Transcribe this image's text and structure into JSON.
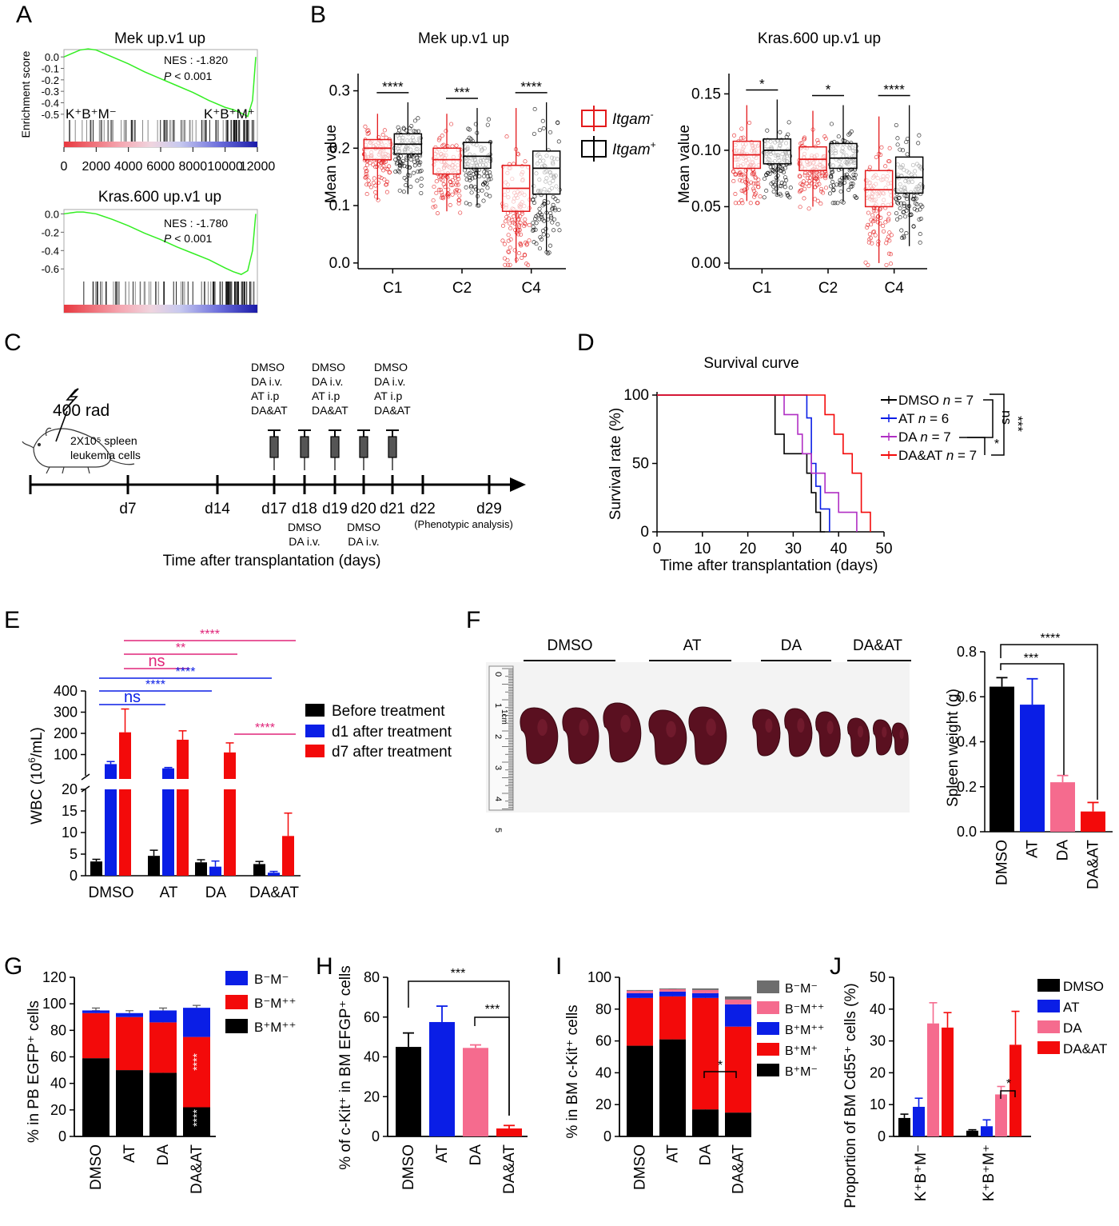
{
  "panels": {
    "A": {
      "letter": "A",
      "top": {
        "title": "Mek up.v1 up",
        "ylabel": "Enrichment score",
        "yticks": [
          "0.0",
          "-0.1",
          "-0.2",
          "-0.3",
          "-0.4",
          "-0.5"
        ],
        "nes": "NES : -1.820",
        "p_italic": "P",
        "p_rest": " < 0.001",
        "left_group": "K⁺B⁺M⁻",
        "right_group": "K⁺B⁺M⁺",
        "xticks": [
          "0",
          "2000",
          "4000",
          "6000",
          "8000",
          "10000",
          "12000"
        ]
      },
      "bottom": {
        "title": "Kras.600 up.v1 up",
        "yticks": [
          "0.0",
          "-0.2",
          "-0.4",
          "-0.6"
        ],
        "nes": "NES : -1.780",
        "p_italic": "P",
        "p_rest": " < 0.001"
      }
    },
    "B": {
      "letter": "B",
      "ylabel": "Mean value",
      "legend": [
        {
          "gene": "Itgam",
          "sup": "-",
          "color": "#e31a1c"
        },
        {
          "gene": "Itgam",
          "sup": "+",
          "color": "#000000"
        }
      ],
      "left": {
        "title": "Mek up.v1 up",
        "yticks": [
          "0.0",
          "0.1",
          "0.2",
          "0.3"
        ],
        "stars": [
          "****",
          "***",
          "****"
        ]
      },
      "right": {
        "title": "Kras.600 up.v1 up",
        "yticks": [
          "0.00",
          "0.05",
          "0.10",
          "0.15"
        ],
        "stars": [
          "*",
          "*",
          "****"
        ]
      }
    },
    "C": {
      "letter": "C",
      "dose": "400 rad",
      "cells_line1": "2X10⁵ spleen",
      "cells_line2": "leukemia cells",
      "treat_lines": [
        "DMSO",
        "DA i.v.",
        "AT i.p",
        "DA&AT"
      ],
      "below_lines": [
        "DMSO",
        "DA i.v."
      ],
      "days": [
        "d7",
        "d14",
        "d17",
        "d18",
        "d19",
        "d20",
        "d21",
        "d22",
        "d29"
      ],
      "pheno": "(Phenotypic analysis)",
      "xlabel": "Time after transplantation (days)"
    },
    "D": {
      "letter": "D",
      "title": "Survival curve",
      "ylabel": "Survival rate (%)",
      "xlabel": "Time after transplantation (days)",
      "sig": [
        "ns",
        "***",
        "*"
      ]
    },
    "E": {
      "letter": "E",
      "ylabel_pre": "WBC (10",
      "ylabel_sup": "6",
      "ylabel_post": "/mL)",
      "legend": [
        "Before treatment",
        "d1 after treatment",
        "d7 after treatment"
      ],
      "sig": [
        "****",
        "**",
        "ns",
        "****",
        "****",
        "ns",
        "****"
      ]
    },
    "F": {
      "letter": "F",
      "photo_groups": [
        "DMSO",
        "AT",
        "DA",
        "DA&AT"
      ],
      "ruler_label": "1cm",
      "ylabel": "Spleen weight (g)",
      "sig": [
        "****",
        "***"
      ]
    },
    "G": {
      "letter": "G",
      "ylabel": "% in PB EGFP⁺ cells",
      "legend": [
        "B⁻M⁻",
        "B⁻M⁺⁺",
        "B⁺M⁺⁺"
      ],
      "star": "****"
    },
    "H": {
      "letter": "H",
      "ylabel": "% of c-Kit⁺ in BM EFGP⁺ cells",
      "sig": [
        "***",
        "***"
      ]
    },
    "I": {
      "letter": "I",
      "ylabel": "% in BM c-Kit⁺ cells",
      "legend": [
        "B⁻M⁻",
        "B⁻M⁺⁺",
        "B⁺M⁺⁺",
        "B⁺M⁺",
        "B⁺M⁻"
      ],
      "sig": "*"
    },
    "J": {
      "letter": "J",
      "ylabel": "Proportion of BM Cd55⁺ cells (%)",
      "legend": [
        "DMSO",
        "AT",
        "DA",
        "DA&AT"
      ],
      "groups": [
        "K⁺B⁺M⁻",
        "K⁺B⁺M⁺"
      ],
      "sig": "*"
    }
  },
  "colors": {
    "black": "#000000",
    "blue": "#0a1ee6",
    "red": "#f30a0a",
    "pink": "#f56b8e",
    "gray": "#6d6d6d",
    "magenta": "#e0267a",
    "purple": "#b02fc4",
    "gsea_green": "#33ee22"
  },
  "chart_data": [
    {
      "id": "A-top",
      "type": "line",
      "title": "Mek up.v1 up",
      "ylabel": "Enrichment score",
      "x": [
        0,
        500,
        1000,
        1500,
        2000,
        3000,
        4000,
        5000,
        6000,
        7000,
        8000,
        9000,
        10000,
        10500,
        11000,
        11400,
        11700,
        11900
      ],
      "y": [
        0.0,
        0.03,
        0.06,
        0.07,
        0.06,
        0.0,
        -0.06,
        -0.13,
        -0.19,
        -0.25,
        -0.31,
        -0.38,
        -0.44,
        -0.46,
        -0.49,
        -0.52,
        -0.38,
        0.0
      ],
      "xlim": [
        0,
        12000
      ],
      "ylim": [
        -0.55,
        0.05
      ]
    },
    {
      "id": "A-bottom",
      "type": "line",
      "title": "Kras.600 up.v1 up",
      "x": [
        0,
        400,
        800,
        1200,
        2000,
        3000,
        4000,
        5000,
        6000,
        7000,
        8000,
        9000,
        10000,
        10500,
        11000,
        11400,
        11700,
        11900
      ],
      "y": [
        0.0,
        0.01,
        0.02,
        0.02,
        0.0,
        -0.06,
        -0.13,
        -0.21,
        -0.28,
        -0.36,
        -0.43,
        -0.5,
        -0.59,
        -0.63,
        -0.66,
        -0.62,
        -0.4,
        0.0
      ],
      "xlim": [
        0,
        12000
      ],
      "ylim": [
        -0.72,
        0.03
      ]
    },
    {
      "id": "B-left",
      "type": "box",
      "title": "Mek up.v1 up",
      "ylabel": "Mean value",
      "categories": [
        "C1",
        "C2",
        "C4"
      ],
      "ylim": [
        -0.01,
        0.33
      ],
      "series": [
        {
          "name": "Itgam-",
          "boxes": [
            [
              0.11,
              0.18,
              0.2,
              0.215,
              0.26
            ],
            [
              0.09,
              0.155,
              0.18,
              0.2,
              0.26
            ],
            [
              0.0,
              0.09,
              0.13,
              0.17,
              0.27
            ]
          ]
        },
        {
          "name": "Itgam+",
          "boxes": [
            [
              0.12,
              0.19,
              0.207,
              0.225,
              0.28
            ],
            [
              0.1,
              0.165,
              0.186,
              0.21,
              0.27
            ],
            [
              0.02,
              0.12,
              0.165,
              0.195,
              0.28
            ]
          ]
        }
      ],
      "significance": [
        "****",
        "***",
        "****"
      ]
    },
    {
      "id": "B-right",
      "type": "box",
      "title": "Kras.600 up.v1 up",
      "ylabel": "Mean value",
      "categories": [
        "C1",
        "C2",
        "C4"
      ],
      "ylim": [
        -0.005,
        0.168
      ],
      "series": [
        {
          "name": "Itgam-",
          "boxes": [
            [
              0.055,
              0.084,
              0.096,
              0.108,
              0.14
            ],
            [
              0.05,
              0.082,
              0.092,
              0.103,
              0.135
            ],
            [
              0.0,
              0.05,
              0.065,
              0.082,
              0.13
            ]
          ]
        },
        {
          "name": "Itgam+",
          "boxes": [
            [
              0.06,
              0.088,
              0.1,
              0.11,
              0.145
            ],
            [
              0.055,
              0.084,
              0.093,
              0.106,
              0.14
            ],
            [
              0.015,
              0.062,
              0.076,
              0.094,
              0.14
            ]
          ]
        }
      ],
      "significance": [
        "*",
        "*",
        "****"
      ]
    },
    {
      "id": "D",
      "type": "line",
      "title": "Survival curve",
      "xlabel": "Time after transplantation (days)",
      "ylabel": "Survival rate (%)",
      "xlim": [
        0,
        50
      ],
      "ylim": [
        0,
        100
      ],
      "xticks": [
        0,
        10,
        20,
        30,
        40,
        50
      ],
      "yticks": [
        0,
        50,
        100
      ],
      "series": [
        {
          "name": "DMSO n = 7",
          "color": "#000000",
          "x": [
            0,
            26,
            26,
            28,
            28,
            33,
            33,
            34,
            34,
            35,
            35,
            36,
            36,
            37,
            37
          ],
          "y": [
            100,
            100,
            71.4,
            71.4,
            57.1,
            57.1,
            42.9,
            42.9,
            28.6,
            28.6,
            14.3,
            14.3,
            0,
            0,
            0
          ]
        },
        {
          "name": "AT n = 6",
          "color": "#0a1ee6",
          "x": [
            0,
            33,
            33,
            34,
            34,
            35,
            35,
            36,
            36,
            38,
            38
          ],
          "y": [
            100,
            100,
            83.3,
            83.3,
            50,
            50,
            33.3,
            33.3,
            16.7,
            16.7,
            0
          ]
        },
        {
          "name": "DA n = 7",
          "color": "#b02fc4",
          "x": [
            0,
            28,
            28,
            31,
            31,
            32,
            32,
            34,
            34,
            37,
            37,
            40,
            40,
            44,
            44
          ],
          "y": [
            100,
            100,
            85.7,
            85.7,
            71.4,
            71.4,
            57.1,
            57.1,
            42.9,
            42.9,
            28.6,
            28.6,
            14.3,
            14.3,
            0
          ]
        },
        {
          "name": "DA&AT n = 7",
          "color": "#f30a0a",
          "x": [
            0,
            37,
            37,
            39,
            39,
            41,
            41,
            43,
            43,
            45,
            45,
            47,
            47
          ],
          "y": [
            100,
            100,
            85.7,
            85.7,
            71.4,
            71.4,
            57.1,
            57.1,
            42.9,
            42.9,
            14.3,
            14.3,
            0
          ]
        }
      ],
      "significance": [
        "ns",
        "***",
        "*"
      ]
    },
    {
      "id": "E",
      "type": "bar",
      "ylabel": "WBC (10^6/mL)",
      "categories": [
        "DMSO",
        "AT",
        "DA",
        "DA&AT"
      ],
      "series": [
        {
          "name": "Before treatment",
          "values": [
            3.3,
            4.6,
            3.1,
            2.7
          ],
          "errors": [
            0.5,
            1.3,
            0.6,
            0.6
          ]
        },
        {
          "name": "d1 after treatment",
          "values": [
            55,
            35,
            2.1,
            0.7
          ],
          "errors": [
            12,
            4,
            1.3,
            0.3
          ]
        },
        {
          "name": "d7 after treatment",
          "values": [
            205,
            170,
            110,
            9.2
          ],
          "errors": [
            110,
            42,
            45,
            5.3
          ]
        }
      ],
      "axis_break": {
        "low": [
          0,
          20
        ],
        "high": [
          0,
          400
        ]
      },
      "yticks_low": [
        0,
        5,
        10,
        15,
        20
      ],
      "yticks_high": [
        100,
        200,
        300,
        400
      ],
      "significance": [
        "****",
        "**",
        "ns",
        "****",
        "****",
        "ns",
        "****"
      ]
    },
    {
      "id": "F",
      "type": "bar",
      "ylabel": "Spleen weight (g)",
      "categories": [
        "DMSO",
        "AT",
        "DA",
        "DA&AT"
      ],
      "values": [
        0.645,
        0.565,
        0.22,
        0.09
      ],
      "errors": [
        0.04,
        0.115,
        0.03,
        0.04
      ],
      "ylim": [
        0,
        0.8
      ],
      "yticks": [
        0.0,
        0.2,
        0.4,
        0.6,
        0.8
      ],
      "significance": [
        "****",
        "***"
      ]
    },
    {
      "id": "G",
      "type": "bar",
      "ylabel": "% in PB EGFP+ cells",
      "categories": [
        "DMSO",
        "AT",
        "DA",
        "DA&AT"
      ],
      "series": [
        {
          "name": "B+M++",
          "values": [
            59,
            50,
            48,
            22
          ]
        },
        {
          "name": "B-M++",
          "values": [
            34,
            40,
            38,
            53
          ]
        },
        {
          "name": "B-M-",
          "values": [
            2,
            3,
            9,
            22
          ]
        }
      ],
      "ylim": [
        0,
        120
      ],
      "yticks": [
        0,
        20,
        40,
        60,
        80,
        100,
        120
      ]
    },
    {
      "id": "H",
      "type": "bar",
      "ylabel": "% of c-Kit+ in BM EFGP+ cells",
      "categories": [
        "DMSO",
        "AT",
        "DA",
        "DA&AT"
      ],
      "values": [
        45,
        57.5,
        44.5,
        4
      ],
      "errors": [
        7,
        8,
        1.5,
        1.5
      ],
      "ylim": [
        0,
        80
      ],
      "yticks": [
        0,
        20,
        40,
        60,
        80
      ],
      "significance": [
        "***",
        "***"
      ]
    },
    {
      "id": "I",
      "type": "bar",
      "ylabel": "% in BM c-Kit+ cells",
      "categories": [
        "DMSO",
        "AT",
        "DA",
        "DA&AT"
      ],
      "series": [
        {
          "name": "B+M-",
          "values": [
            57,
            61,
            17,
            15
          ]
        },
        {
          "name": "B+M+",
          "values": [
            30,
            27,
            70,
            54
          ]
        },
        {
          "name": "B+M++",
          "values": [
            3,
            3,
            3,
            14
          ]
        },
        {
          "name": "B-M++",
          "values": [
            1.5,
            1.5,
            2,
            3
          ]
        },
        {
          "name": "B-M-",
          "values": [
            0.5,
            0.5,
            1,
            2
          ]
        }
      ],
      "ylim": [
        0,
        100
      ],
      "yticks": [
        0,
        20,
        40,
        60,
        80,
        100
      ],
      "significance": [
        "*"
      ]
    },
    {
      "id": "J",
      "type": "bar",
      "ylabel": "Proportion of BM Cd55+ cells (%)",
      "categories": [
        "K+B+M-",
        "K+B+M+"
      ],
      "series": [
        {
          "name": "DMSO",
          "values": [
            5.8,
            1.8
          ],
          "errors": [
            1.2,
            0.3
          ]
        },
        {
          "name": "AT",
          "values": [
            9.3,
            3.2
          ],
          "errors": [
            2.7,
            2.0
          ]
        },
        {
          "name": "DA",
          "values": [
            35.5,
            13.2
          ],
          "errors": [
            6.5,
            2.5
          ]
        },
        {
          "name": "DA&AT",
          "values": [
            34.2,
            28.8
          ],
          "errors": [
            4.7,
            10.5
          ]
        }
      ],
      "ylim": [
        0,
        50
      ],
      "yticks": [
        0,
        10,
        20,
        30,
        40,
        50
      ],
      "significance": [
        "*"
      ]
    }
  ]
}
